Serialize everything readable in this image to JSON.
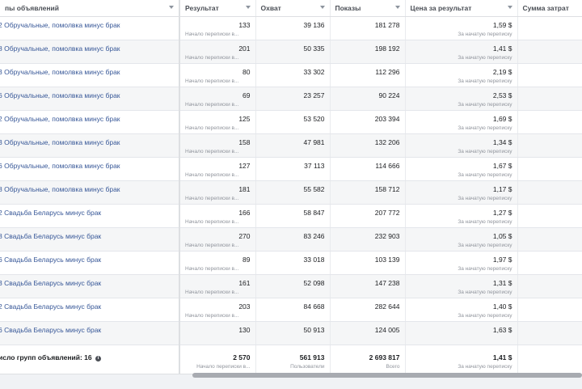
{
  "columns": [
    {
      "label": "пы объявлений"
    },
    {
      "label": "Результат"
    },
    {
      "label": "Охват"
    },
    {
      "label": "Показы"
    },
    {
      "label": "Цена за результат"
    },
    {
      "label": "Сумма затрат"
    }
  ],
  "rows": [
    {
      "name": "2 Обручальные, помолвка минус брак",
      "result": "133",
      "result_sub": "Начало переписки в...",
      "reach": "39 136",
      "impressions": "181 278",
      "cpr": "1,59 $",
      "cpr_sub": "За начатую переписку"
    },
    {
      "name": "8 Обручальные, помолвка минус брак",
      "result": "201",
      "result_sub": "Начало переписки в...",
      "reach": "50 335",
      "impressions": "198 192",
      "cpr": "1,41 $",
      "cpr_sub": "За начатую переписку"
    },
    {
      "name": "3 Обручальные, помолвка минус брак",
      "result": "80",
      "result_sub": "Начало переписки в...",
      "reach": "33 302",
      "impressions": "112 296",
      "cpr": "2,19 $",
      "cpr_sub": "За начатую переписку"
    },
    {
      "name": "6 Обручальные, помолвка минус брак",
      "result": "69",
      "result_sub": "Начало переписки в...",
      "reach": "23 257",
      "impressions": "90 224",
      "cpr": "2,53 $",
      "cpr_sub": "За начатую переписку"
    },
    {
      "name": "2 Обручальные, помолвка минус брак",
      "result": "125",
      "result_sub": "Начало переписки в...",
      "reach": "53 520",
      "impressions": "203 394",
      "cpr": "1,69 $",
      "cpr_sub": "За начатую переписку"
    },
    {
      "name": "3 Обручальные, помолвка минус брак",
      "result": "158",
      "result_sub": "Начало переписки в...",
      "reach": "47 981",
      "impressions": "132 206",
      "cpr": "1,34 $",
      "cpr_sub": "За начатую переписку"
    },
    {
      "name": "6 Обручальные, помолвка минус брак",
      "result": "127",
      "result_sub": "Начало переписки в...",
      "reach": "37 113",
      "impressions": "114 666",
      "cpr": "1,67 $",
      "cpr_sub": "За начатую переписку"
    },
    {
      "name": "8 Обручальные, помолвка минус брак",
      "result": "181",
      "result_sub": "Начало переписки в...",
      "reach": "55 582",
      "impressions": "158 712",
      "cpr": "1,17 $",
      "cpr_sub": "За начатую переписку"
    },
    {
      "name": "2 Свадьба Беларусь минус брак",
      "result": "166",
      "result_sub": "Начало переписки в...",
      "reach": "58 847",
      "impressions": "207 772",
      "cpr": "1,27 $",
      "cpr_sub": "За начатую переписку"
    },
    {
      "name": "8 Свадьба Беларусь минус брак",
      "result": "270",
      "result_sub": "Начало переписки в...",
      "reach": "83 246",
      "impressions": "232 903",
      "cpr": "1,05 $",
      "cpr_sub": "За начатую переписку"
    },
    {
      "name": "6 Свадьба Беларусь минус брак",
      "result": "89",
      "result_sub": "Начало переписки в...",
      "reach": "33 018",
      "impressions": "103 139",
      "cpr": "1,97 $",
      "cpr_sub": "За начатую переписку"
    },
    {
      "name": "3 Свадьба Беларусь минус брак",
      "result": "161",
      "result_sub": "Начало переписки в...",
      "reach": "52 098",
      "impressions": "147 238",
      "cpr": "1,31 $",
      "cpr_sub": "За начатую переписку"
    },
    {
      "name": "2 Свадьба Беларусь минус брак",
      "result": "203",
      "result_sub": "Начало переписки в...",
      "reach": "84 668",
      "impressions": "282 644",
      "cpr": "1,40 $",
      "cpr_sub": "За начатую переписку"
    },
    {
      "name": "6 Свадьба Беларусь минус брак",
      "result": "130",
      "result_sub": "",
      "reach": "50 913",
      "impressions": "124 005",
      "cpr": "1,63 $",
      "cpr_sub": ""
    }
  ],
  "total": {
    "label": "исло групп объявлений: 16",
    "result": "2 570",
    "result_sub": "Начало переписки в...",
    "reach": "561 913",
    "reach_sub": "Пользователи",
    "impressions": "2 693 817",
    "impressions_sub": "Всего",
    "cpr": "1,41 $",
    "cpr_sub": "За начатую переписку"
  },
  "icons": {
    "sort": "sort-caret-icon",
    "info": "info-icon"
  },
  "colors": {
    "link": "#385898",
    "alt_row": "#f5f6f7",
    "muted": "#90949c"
  }
}
